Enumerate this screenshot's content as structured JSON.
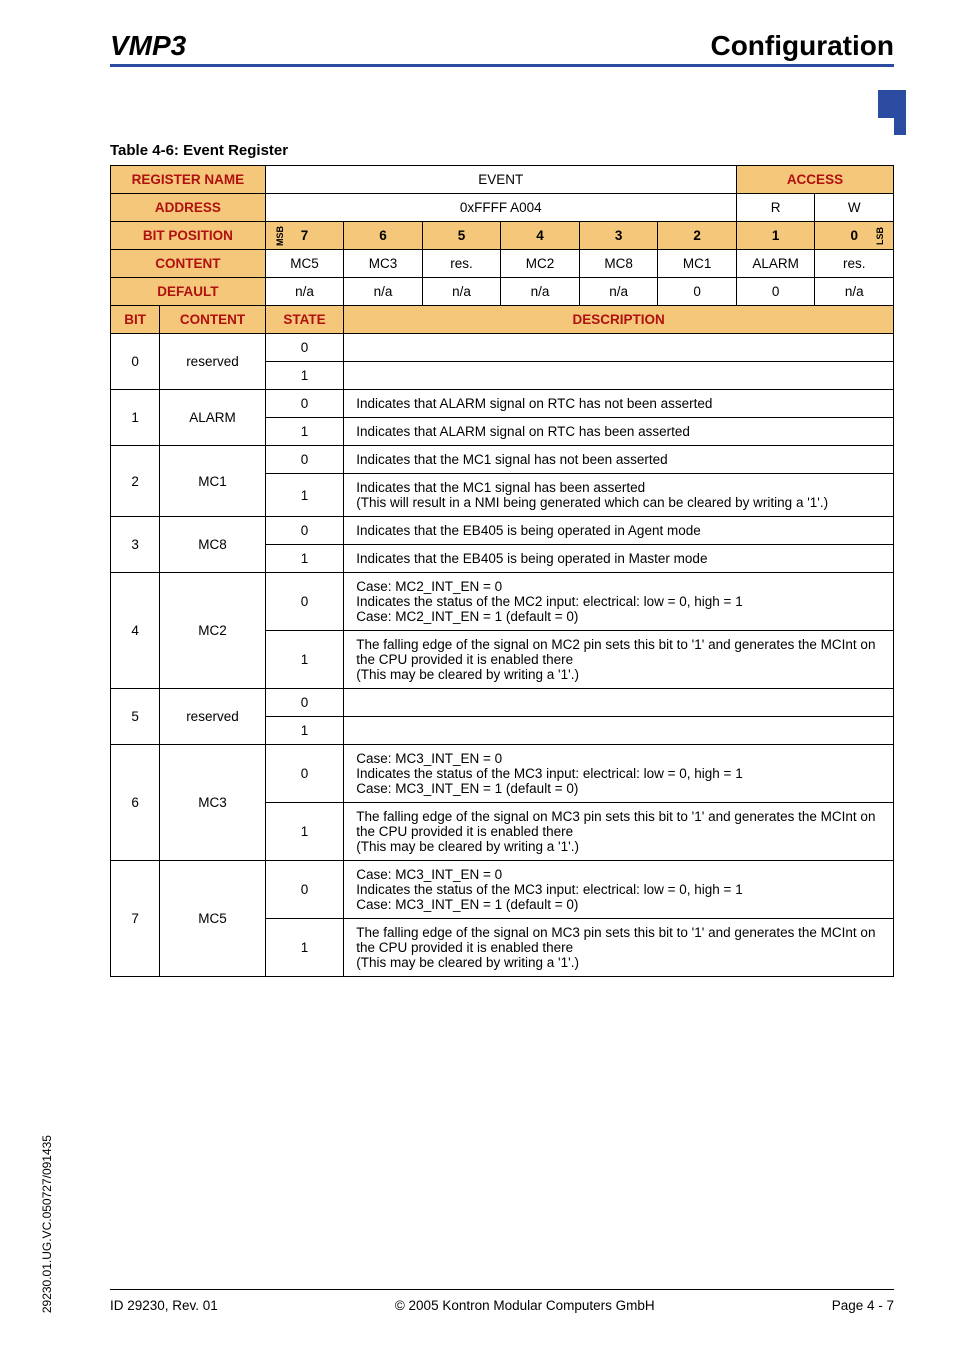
{
  "header": {
    "left": "VMP3",
    "right": "Configuration"
  },
  "caption": "Table 4-6:  Event Register",
  "colors": {
    "header_bg": "#f5c77a",
    "header_text_red": "#b01010",
    "rule_blue": "#2a4ba0"
  },
  "register": {
    "name_label": "REGISTER NAME",
    "name_value": "EVENT",
    "access_label": "ACCESS",
    "address_label": "ADDRESS",
    "address_value": "0xFFFF A004",
    "access_r": "R",
    "access_w": "W",
    "bitpos_label": "BIT POSITION",
    "msb": "MSB",
    "lsb": "LSB",
    "bits": [
      "7",
      "6",
      "5",
      "4",
      "3",
      "2",
      "1",
      "0"
    ],
    "content_label": "CONTENT",
    "content_row": [
      "MC5",
      "MC3",
      "res.",
      "MC2",
      "MC8",
      "MC1",
      "ALARM",
      "res."
    ],
    "default_label": "DEFAULT",
    "default_row": [
      "n/a",
      "n/a",
      "n/a",
      "n/a",
      "n/a",
      "0",
      "0",
      "n/a"
    ],
    "desc_header": {
      "bit": "BIT",
      "content": "CONTENT",
      "state": "STATE",
      "description": "DESCRIPTION"
    }
  },
  "rows": [
    {
      "bit": "0",
      "content": "reserved",
      "state0": "0",
      "desc0": "",
      "state1": "1",
      "desc1": ""
    },
    {
      "bit": "1",
      "content": "ALARM",
      "state0": "0",
      "desc0": "Indicates that ALARM signal on RTC has not been asserted",
      "state1": "1",
      "desc1": "Indicates that ALARM signal on RTC has been asserted"
    },
    {
      "bit": "2",
      "content": "MC1",
      "state0": "0",
      "desc0": "Indicates that the MC1 signal has not been asserted",
      "state1": "1",
      "desc1": "Indicates that the MC1 signal has been asserted\n(This will result in a NMI being generated which can be cleared by writing a '1'.)"
    },
    {
      "bit": "3",
      "content": "MC8",
      "state0": "0",
      "desc0": "Indicates that the EB405 is being operated in Agent mode",
      "state1": "1",
      "desc1": "Indicates that the EB405 is being operated in Master mode"
    },
    {
      "bit": "4",
      "content": "MC2",
      "state0": "0",
      "desc0": "Case: MC2_INT_EN = 0\nIndicates the status of the MC2 input: electrical: low = 0, high = 1\nCase: MC2_INT_EN = 1 (default = 0)",
      "state1": "1",
      "desc1": "The falling edge of the signal on MC2 pin sets this bit to '1' and generates the MCInt on the CPU provided it is enabled there\n(This may be cleared by writing a '1'.)"
    },
    {
      "bit": "5",
      "content": "reserved",
      "state0": "0",
      "desc0": "",
      "state1": "1",
      "desc1": ""
    },
    {
      "bit": "6",
      "content": "MC3",
      "state0": "0",
      "desc0": "Case: MC3_INT_EN = 0\nIndicates the status of the MC3 input: electrical: low = 0, high = 1\nCase: MC3_INT_EN = 1 (default = 0)",
      "state1": "1",
      "desc1": "The falling edge of the signal on MC3 pin sets this bit to '1' and generates the MCInt on the CPU provided it is enabled there\n(This may be cleared by writing a '1'.)"
    },
    {
      "bit": "7",
      "content": "MC5",
      "state0": "0",
      "desc0": "Case: MC3_INT_EN = 0\nIndicates the status of the MC3 input: electrical: low = 0, high = 1\nCase: MC3_INT_EN = 1 (default = 0)",
      "state1": "1",
      "desc1": "The falling edge of the signal on MC3 pin sets this bit to '1' and generates the MCInt on the CPU provided it is enabled there\n(This may be cleared by writing a '1'.)"
    }
  ],
  "footer": {
    "left": "ID 29230, Rev. 01",
    "center": "© 2005 Kontron Modular Computers GmbH",
    "right": "Page 4 - 7"
  },
  "side": "29230.01.UG.VC.050727/091435"
}
